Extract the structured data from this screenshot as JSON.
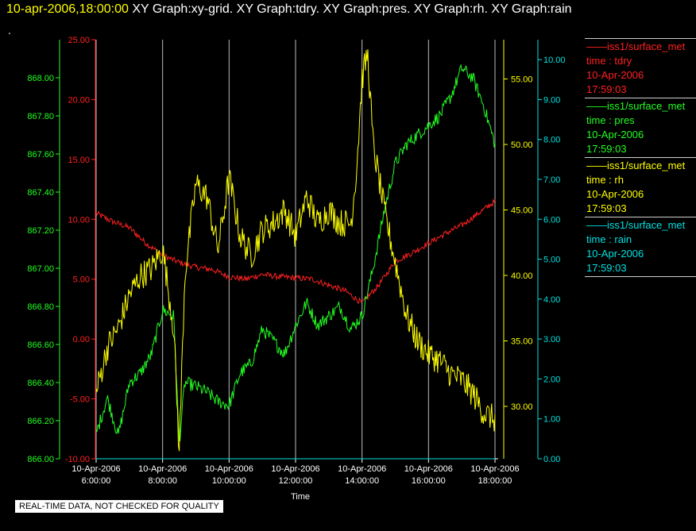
{
  "header": {
    "datetime": "10-apr-2006,18:00:00",
    "graphs": "XY Graph:xy-grid.  XY Graph:tdry.  XY Graph:pres.  XY Graph:rh.  XY Graph:rain"
  },
  "dot": ".",
  "disclaimer": "REAL-TIME DATA, NOT CHECKED FOR QUALITY",
  "legend": [
    {
      "name": "iss1/surface_met",
      "var": "time : tdry",
      "date": "10-Apr-2006",
      "time": "17:59:03",
      "color": "#ff2020"
    },
    {
      "name": "iss1/surface_met",
      "var": "time : pres",
      "date": "10-Apr-2006",
      "time": "17:59:03",
      "color": "#22ff22"
    },
    {
      "name": "iss1/surface_met",
      "var": "time : rh",
      "date": "10-Apr-2006",
      "time": "17:59:03",
      "color": "#ffff00"
    },
    {
      "name": "iss1/surface_met",
      "var": "time : rain",
      "date": "10-Apr-2006",
      "time": "17:59:03",
      "color": "#00e0e0"
    }
  ],
  "chart_data": {
    "type": "line",
    "xlabel": "Time",
    "x_range": [
      "10-Apr-2006 06:00:00",
      "10-Apr-2006 18:00:00"
    ],
    "x_ticks": [
      {
        "date": "10-Apr-2006",
        "time": "6:00:00"
      },
      {
        "date": "10-Apr-2006",
        "time": "8:00:00"
      },
      {
        "date": "10-Apr-2006",
        "time": "10:00:00"
      },
      {
        "date": "10-Apr-2006",
        "time": "12:00:00"
      },
      {
        "date": "10-Apr-2006",
        "time": "14:00:00"
      },
      {
        "date": "10-Apr-2006",
        "time": "16:00:00"
      },
      {
        "date": "10-Apr-2006",
        "time": "18:00:00"
      }
    ],
    "grid": "vertical",
    "axes": [
      {
        "id": "pres",
        "color": "#22ff22",
        "ylim": [
          866.0,
          868.2
        ],
        "ticks": [
          "866.00",
          "866.20",
          "866.40",
          "866.60",
          "866.80",
          "867.00",
          "867.20",
          "867.40",
          "867.60",
          "867.80",
          "868.00"
        ]
      },
      {
        "id": "tdry",
        "color": "#ff2020",
        "ylim": [
          -10,
          25
        ],
        "ticks": [
          "-10.00",
          "-5.00",
          "0.00",
          "5.00",
          "10.00",
          "15.00",
          "20.00",
          "25.00"
        ]
      },
      {
        "id": "rh",
        "color": "#ffff00",
        "ylim": [
          26,
          58
        ],
        "ticks": [
          "30.00",
          "35.00",
          "40.00",
          "45.00",
          "50.00",
          "55.00"
        ]
      },
      {
        "id": "rain",
        "color": "#00e0e0",
        "ylim": [
          0,
          10.5
        ],
        "ticks": [
          "0.00",
          "1.00",
          "2.00",
          "3.00",
          "4.00",
          "5.00",
          "6.00",
          "7.00",
          "8.00",
          "9.00",
          "10.00"
        ]
      }
    ],
    "series": [
      {
        "name": "iss1/surface_met time : tdry",
        "axis": "tdry",
        "color": "#ff2020",
        "x": [
          "06:00",
          "06:30",
          "07:00",
          "07:30",
          "08:00",
          "08:30",
          "09:00",
          "09:30",
          "10:00",
          "10:30",
          "11:00",
          "11:30",
          "12:00",
          "12:30",
          "13:00",
          "13:30",
          "14:00",
          "14:30",
          "15:00",
          "15:30",
          "16:00",
          "16:30",
          "17:00",
          "17:30",
          "18:00"
        ],
        "values": [
          10.5,
          9.8,
          9.3,
          8.0,
          7.0,
          6.4,
          6.0,
          5.8,
          5.2,
          5.0,
          5.4,
          5.2,
          5.1,
          5.0,
          4.5,
          4.0,
          3.0,
          4.5,
          6.5,
          7.2,
          8.0,
          8.8,
          9.5,
          10.5,
          11.5
        ]
      },
      {
        "name": "iss1/surface_met time : pres",
        "axis": "pres",
        "color": "#22ff22",
        "x": [
          "06:00",
          "06:20",
          "06:40",
          "07:00",
          "07:20",
          "07:40",
          "08:00",
          "08:20",
          "08:30",
          "08:40",
          "09:00",
          "09:20",
          "09:40",
          "10:00",
          "10:20",
          "10:40",
          "11:00",
          "11:20",
          "11:40",
          "12:00",
          "12:20",
          "12:40",
          "13:00",
          "13:20",
          "13:40",
          "14:00",
          "14:20",
          "14:40",
          "15:00",
          "15:20",
          "15:40",
          "16:00",
          "16:20",
          "16:40",
          "17:00",
          "17:20",
          "17:40",
          "18:00"
        ],
        "values": [
          866.13,
          866.32,
          866.12,
          866.4,
          866.45,
          866.55,
          866.78,
          866.75,
          866.08,
          866.4,
          866.38,
          866.35,
          866.3,
          866.28,
          866.45,
          866.5,
          866.68,
          866.62,
          866.55,
          866.7,
          866.82,
          866.7,
          866.75,
          866.8,
          866.68,
          866.75,
          867.0,
          867.3,
          867.55,
          867.65,
          867.7,
          867.75,
          867.8,
          867.9,
          868.05,
          868.0,
          867.85,
          867.65
        ]
      },
      {
        "name": "iss1/surface_met time : rh",
        "axis": "rh",
        "color": "#ffff00",
        "x": [
          "06:00",
          "06:20",
          "06:40",
          "07:00",
          "07:20",
          "07:40",
          "08:00",
          "08:20",
          "08:30",
          "08:40",
          "09:00",
          "09:20",
          "09:40",
          "10:00",
          "10:20",
          "10:40",
          "11:00",
          "11:20",
          "11:40",
          "12:00",
          "12:20",
          "12:40",
          "13:00",
          "13:20",
          "13:40",
          "13:50",
          "14:00",
          "14:10",
          "14:20",
          "14:40",
          "15:00",
          "15:20",
          "15:40",
          "16:00",
          "16:20",
          "16:40",
          "17:00",
          "17:20",
          "17:40",
          "18:00"
        ],
        "values": [
          31.0,
          34.5,
          36.0,
          38.5,
          40.0,
          40.5,
          42.0,
          36.0,
          26.5,
          40.0,
          47.0,
          46.0,
          42.0,
          47.5,
          43.0,
          41.5,
          43.5,
          44.0,
          45.0,
          43.0,
          46.0,
          44.0,
          45.0,
          44.0,
          44.0,
          48.0,
          55.0,
          57.0,
          50.0,
          45.0,
          41.0,
          37.0,
          35.0,
          34.0,
          33.5,
          32.5,
          32.0,
          31.0,
          29.5,
          29.0
        ]
      },
      {
        "name": "iss1/surface_met time : rain",
        "axis": "rain",
        "color": "#00e0e0",
        "x": [
          "06:00",
          "18:00"
        ],
        "values": [
          0.0,
          0.0
        ]
      }
    ]
  }
}
